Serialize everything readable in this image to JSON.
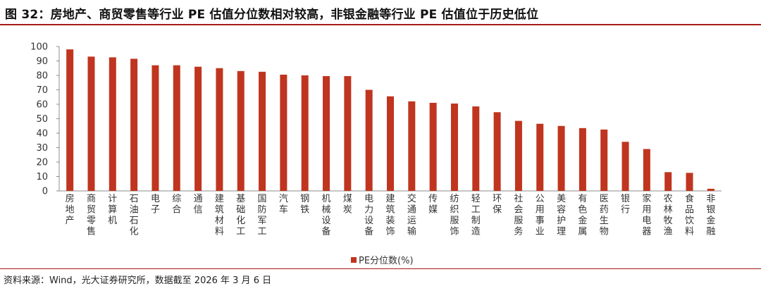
{
  "header": {
    "title": "图 32：房地产、商贸零售等行业 PE 估值分位数相对较高，非银金融等行业 PE 估值位于历史低位"
  },
  "footer": {
    "source": "资料来源：Wind，光大证券研究所，数据截至 2026 年 3 月 6 日"
  },
  "colors": {
    "bar": "#c0351f",
    "accent_rule": "#a61b18"
  },
  "chart_data": {
    "type": "bar",
    "title": "",
    "xlabel": "",
    "ylabel": "",
    "ylim": [
      0,
      100
    ],
    "yticks": [
      0,
      10,
      20,
      30,
      40,
      50,
      60,
      70,
      80,
      90,
      100
    ],
    "grid": false,
    "legend_position": "bottom-center",
    "categories": [
      "房地产",
      "商贸零售",
      "计算机",
      "石油石化",
      "电子",
      "综合",
      "通信",
      "建筑材料",
      "基础化工",
      "国防军工",
      "汽车",
      "钢铁",
      "机械设备",
      "煤炭",
      "电力设备",
      "建筑装饰",
      "交通运输",
      "传媒",
      "纺织服饰",
      "轻工制造",
      "环保",
      "社会服务",
      "公用事业",
      "美容护理",
      "有色金属",
      "医药生物",
      "银行",
      "家用电器",
      "农林牧渔",
      "食品饮料",
      "非银金融"
    ],
    "series": [
      {
        "name": "PE分位数(%)",
        "values": [
          98,
          93,
          92.5,
          91.5,
          87,
          87,
          86,
          85,
          83,
          82.5,
          80.5,
          80,
          79.5,
          79.5,
          70,
          65.5,
          62,
          61,
          60.5,
          58.5,
          54.5,
          48.5,
          46.5,
          45,
          43.5,
          42.5,
          34,
          29,
          13,
          12.5,
          1.5
        ]
      }
    ]
  }
}
